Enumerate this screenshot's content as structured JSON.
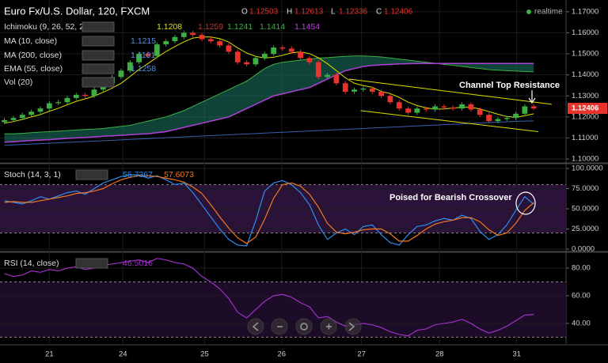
{
  "status": "realtime",
  "chart_data": [
    {
      "type": "candlestick",
      "title": "Euro Fx/U.S. Dollar, 120, FXCM",
      "ohlc_labels": [
        "O",
        "H",
        "L",
        "C"
      ],
      "x": [
        0,
        1,
        2,
        3,
        4,
        5,
        6,
        7,
        8,
        9,
        10,
        11,
        12,
        13,
        14,
        15,
        16,
        17,
        18,
        19,
        20,
        21,
        22,
        23,
        24,
        25,
        26,
        27,
        28,
        29,
        30,
        31,
        32,
        33,
        34,
        35,
        36,
        37,
        38,
        39,
        40,
        41,
        42,
        43,
        44,
        45,
        46,
        47,
        48,
        49,
        50,
        51,
        52,
        53,
        54,
        55,
        56,
        57,
        58,
        59
      ],
      "open": [
        1.1175,
        1.1185,
        1.1195,
        1.121,
        1.1225,
        1.124,
        1.1265,
        1.127,
        1.129,
        1.1305,
        1.13,
        1.133,
        1.136,
        1.139,
        1.142,
        1.146,
        1.15,
        1.149,
        1.1545,
        1.156,
        1.158,
        1.16,
        1.159,
        1.157,
        1.156,
        1.154,
        1.151,
        1.146,
        1.145,
        1.148,
        1.15,
        1.153,
        1.1525,
        1.151,
        1.148,
        1.146,
        1.139,
        1.14,
        1.136,
        1.132,
        1.133,
        1.1335,
        1.132,
        1.13,
        1.127,
        1.124,
        1.122,
        1.124,
        1.1235,
        1.125,
        1.1245,
        1.124,
        1.126,
        1.1235,
        1.121,
        1.118,
        1.119,
        1.1195,
        1.1215,
        1.12503
      ],
      "high": [
        1.1195,
        1.1205,
        1.122,
        1.1235,
        1.125,
        1.1275,
        1.128,
        1.13,
        1.1315,
        1.1315,
        1.134,
        1.137,
        1.14,
        1.143,
        1.147,
        1.151,
        1.151,
        1.1555,
        1.157,
        1.159,
        1.161,
        1.161,
        1.16,
        1.158,
        1.157,
        1.155,
        1.152,
        1.147,
        1.149,
        1.151,
        1.154,
        1.154,
        1.1535,
        1.152,
        1.149,
        1.147,
        1.141,
        1.141,
        1.137,
        1.134,
        1.1345,
        1.1345,
        1.133,
        1.131,
        1.128,
        1.125,
        1.125,
        1.125,
        1.126,
        1.126,
        1.1255,
        1.127,
        1.127,
        1.1245,
        1.122,
        1.12,
        1.1205,
        1.1225,
        1.126,
        1.12613
      ],
      "low": [
        1.1165,
        1.1175,
        1.1185,
        1.12,
        1.1215,
        1.123,
        1.1255,
        1.126,
        1.128,
        1.129,
        1.129,
        1.132,
        1.135,
        1.138,
        1.141,
        1.145,
        1.148,
        1.148,
        1.1535,
        1.155,
        1.157,
        1.158,
        1.156,
        1.155,
        1.153,
        1.15,
        1.145,
        1.144,
        1.144,
        1.147,
        1.149,
        1.1515,
        1.15,
        1.147,
        1.145,
        1.138,
        1.138,
        1.135,
        1.131,
        1.131,
        1.132,
        1.131,
        1.129,
        1.126,
        1.123,
        1.121,
        1.121,
        1.1225,
        1.1225,
        1.1235,
        1.123,
        1.123,
        1.1225,
        1.12,
        1.117,
        1.117,
        1.118,
        1.1185,
        1.1205,
        1.12336
      ],
      "close": [
        1.1185,
        1.1195,
        1.121,
        1.1225,
        1.124,
        1.1265,
        1.127,
        1.129,
        1.1305,
        1.13,
        1.133,
        1.136,
        1.139,
        1.142,
        1.146,
        1.15,
        1.149,
        1.1545,
        1.156,
        1.158,
        1.16,
        1.159,
        1.157,
        1.156,
        1.154,
        1.151,
        1.146,
        1.145,
        1.148,
        1.15,
        1.153,
        1.1525,
        1.151,
        1.148,
        1.146,
        1.139,
        1.14,
        1.136,
        1.132,
        1.133,
        1.1335,
        1.132,
        1.13,
        1.127,
        1.124,
        1.122,
        1.124,
        1.1235,
        1.125,
        1.1245,
        1.124,
        1.126,
        1.1235,
        1.121,
        1.118,
        1.119,
        1.1195,
        1.1215,
        1.125,
        1.12406
      ],
      "up_color": "#3cb043",
      "down_color": "#e8342c",
      "series": [
        {
          "color": "#e0e000",
          "values": [
            1.117,
            1.1178,
            1.1188,
            1.12,
            1.1211,
            1.1227,
            1.1241,
            1.1258,
            1.1274,
            1.1286,
            1.1299,
            1.1317,
            1.1337,
            1.136,
            1.1392,
            1.1426,
            1.1454,
            1.1483,
            1.1511,
            1.1535,
            1.1557,
            1.1575,
            1.158,
            1.158,
            1.1572,
            1.1556,
            1.1528,
            1.1504,
            1.1488,
            1.148,
            1.1484,
            1.1493,
            1.1505,
            1.1509,
            1.1501,
            1.1481,
            1.1453,
            1.142,
            1.1386,
            1.136,
            1.1349,
            1.1341,
            1.1321,
            1.1311,
            1.1293,
            1.127,
            1.1254,
            1.1243,
            1.1237,
            1.1238,
            1.1242,
            1.1246,
            1.1246,
            1.1238,
            1.1225,
            1.1213,
            1.1202,
            1.1198,
            1.1206,
            1.1215
          ]
        },
        {
          "color": "#3a5fb0",
          "values": [
            1.1065,
            1.1067,
            1.1069,
            1.1071,
            1.1073,
            1.1075,
            1.1077,
            1.1079,
            1.1081,
            1.1083,
            1.1085,
            1.1087,
            1.1089,
            1.1091,
            1.1093,
            1.1095,
            1.1097,
            1.1099,
            1.1101,
            1.1103,
            1.1105,
            1.1107,
            1.1109,
            1.1111,
            1.1113,
            1.1115,
            1.1117,
            1.1119,
            1.1121,
            1.1123,
            1.1125,
            1.1127,
            1.1129,
            1.1131,
            1.1133,
            1.1135,
            1.1137,
            1.1139,
            1.1141,
            1.1143,
            1.1145,
            1.1147,
            1.1149,
            1.1151,
            1.1153,
            1.1155,
            1.1157,
            1.1159,
            1.1161,
            1.1163,
            1.1165,
            1.1167,
            1.1169,
            1.1171,
            1.1173,
            1.1175,
            1.1177,
            1.1179,
            1.118,
            1.1181
          ]
        }
      ],
      "cloud": {
        "color": "#1d7a66",
        "span_a": [
          1.112,
          1.112,
          1.1122,
          1.1125,
          1.1128,
          1.113,
          1.1132,
          1.1135,
          1.1138,
          1.114,
          1.1142,
          1.1145,
          1.115,
          1.1155,
          1.116,
          1.117,
          1.118,
          1.119,
          1.12,
          1.1215,
          1.123,
          1.125,
          1.127,
          1.129,
          1.131,
          1.133,
          1.135,
          1.137,
          1.14,
          1.143,
          1.145,
          1.146,
          1.1465,
          1.147,
          1.1475,
          1.148,
          1.1482,
          1.1485,
          1.1488,
          1.149,
          1.149,
          1.1488,
          1.1485,
          1.148,
          1.1475,
          1.147,
          1.1465,
          1.146,
          1.1455,
          1.145,
          1.1445,
          1.144,
          1.1435,
          1.143,
          1.1425,
          1.1422,
          1.142,
          1.1418,
          1.1416,
          1.1414
        ],
        "span_b": [
          1.108,
          1.1082,
          1.1085,
          1.1088,
          1.109,
          1.1092,
          1.1095,
          1.1098,
          1.11,
          1.1102,
          1.1105,
          1.1108,
          1.111,
          1.1112,
          1.1115,
          1.1118,
          1.112,
          1.1125,
          1.113,
          1.114,
          1.115,
          1.116,
          1.117,
          1.118,
          1.119,
          1.12,
          1.122,
          1.124,
          1.126,
          1.128,
          1.13,
          1.131,
          1.132,
          1.133,
          1.134,
          1.136,
          1.138,
          1.14,
          1.142,
          1.143,
          1.144,
          1.1445,
          1.1448,
          1.145,
          1.1452,
          1.1453,
          1.1454,
          1.1454,
          1.1454,
          1.1454,
          1.1454,
          1.1454,
          1.1454,
          1.1454,
          1.1454,
          1.1454,
          1.1454,
          1.1454,
          1.1454,
          1.1454
        ]
      },
      "channels": {
        "color": "#e0e000",
        "lines": [
          {
            "x": [
              38.4,
              61
            ],
            "y": [
              1.138,
              1.126
            ]
          },
          {
            "x": [
              39.7,
              59.5
            ],
            "y": [
              1.123,
              1.113
            ]
          }
        ]
      },
      "indicators": {
        "ichimoku": {
          "label": "Ichimoku (9, 26, 52, 26)",
          "values": [
            1.1208,
            1.1259,
            1.1241
          ]
        },
        "ma10": "MA (10, close)",
        "ma200": "MA (200, close)",
        "ema": {
          "label": "EMA (55, close)",
          "value": 1.1258
        },
        "vol": "Vol (20)"
      },
      "annotation": "Channel Top Resistance",
      "ylim": [
        1.0985,
        1.1756
      ],
      "yticks": [
        {
          "value": 1.1,
          "label": "1.10000"
        },
        {
          "value": 1.11,
          "label": "1.11000"
        },
        {
          "value": 1.12,
          "label": "1.12000"
        },
        {
          "value": 1.13,
          "label": "1.13000"
        },
        {
          "value": 1.14,
          "label": "1.14000"
        },
        {
          "value": 1.15,
          "label": "1.15000"
        },
        {
          "value": 1.16,
          "label": "1.16000"
        },
        {
          "value": 1.17,
          "label": "1.17000"
        }
      ],
      "xlim": [
        -0.5,
        62.6
      ],
      "xticks": [
        {
          "value": 5.0,
          "label": "21"
        },
        {
          "value": 13.2,
          "label": "24"
        },
        {
          "value": 22.3,
          "label": "25"
        },
        {
          "value": 30.9,
          "label": "26"
        },
        {
          "value": 39.8,
          "label": "27"
        },
        {
          "value": 48.5,
          "label": "28"
        },
        {
          "value": 57.1,
          "label": "31"
        }
      ],
      "grid": true
    },
    {
      "type": "line",
      "title": "Stoch (14, 3, 1)",
      "annotation": "Poised for Bearish Crossover",
      "series": [
        {
          "color": "#2e8ef0",
          "values": [
            60,
            58,
            56,
            60,
            65,
            62,
            66,
            70,
            72,
            68,
            75,
            82,
            86,
            90,
            92,
            92,
            88,
            91,
            86,
            80,
            82,
            70,
            55,
            40,
            25,
            12,
            5,
            4,
            35,
            72,
            82,
            85,
            80,
            70,
            55,
            30,
            12,
            20,
            25,
            18,
            28,
            30,
            18,
            8,
            5,
            18,
            28,
            30,
            35,
            38,
            36,
            42,
            38,
            22,
            12,
            18,
            30,
            48,
            65,
            55.7367
          ]
        },
        {
          "color": "#f07820",
          "values": [
            58,
            59,
            58,
            58,
            60,
            62,
            64,
            66,
            69,
            70,
            72,
            75,
            81,
            86,
            89,
            91,
            91,
            90,
            88,
            86,
            83,
            77,
            69,
            55,
            40,
            26,
            14,
            7,
            15,
            37,
            63,
            80,
            82,
            78,
            68,
            52,
            32,
            21,
            19,
            21,
            24,
            25,
            25,
            19,
            10,
            10,
            17,
            25,
            31,
            34,
            36,
            39,
            39,
            34,
            24,
            17,
            20,
            32,
            48,
            57.6073
          ]
        }
      ],
      "levels": [
        20,
        80
      ],
      "band_color": "#2a1238",
      "ylim": [
        -2.9,
        104.9
      ],
      "yticks": [
        {
          "value": 0,
          "label": "0.0000"
        },
        {
          "value": 25,
          "label": "25.0000"
        },
        {
          "value": 50,
          "label": "50.0000"
        },
        {
          "value": 75,
          "label": "75.0000"
        },
        {
          "value": 100,
          "label": "100.0000"
        }
      ],
      "grid": true
    },
    {
      "type": "line",
      "title": "RSI (14, close)",
      "series": [
        {
          "color": "#a030c8",
          "values": [
            76,
            74,
            75,
            78,
            77,
            79,
            78,
            80,
            81,
            79,
            80,
            82,
            83,
            84,
            85,
            86,
            84,
            87,
            86,
            84,
            83,
            80,
            74,
            70,
            65,
            58,
            48,
            44,
            50,
            56,
            60,
            61,
            59,
            55,
            52,
            44,
            45,
            41,
            38,
            39,
            40,
            39,
            37,
            34,
            32,
            31,
            35,
            36,
            39,
            40,
            41,
            43,
            40,
            36,
            33,
            35,
            38,
            42,
            46,
            46.5016
          ]
        }
      ],
      "levels": [
        30,
        70
      ],
      "band_color": "#1c0c28",
      "ylim": [
        25.1,
        90.9
      ],
      "yticks": [
        {
          "value": 40,
          "label": "40.00"
        },
        {
          "value": 60,
          "label": "60.00"
        },
        {
          "value": 80,
          "label": "80.00"
        }
      ],
      "grid": true
    }
  ]
}
